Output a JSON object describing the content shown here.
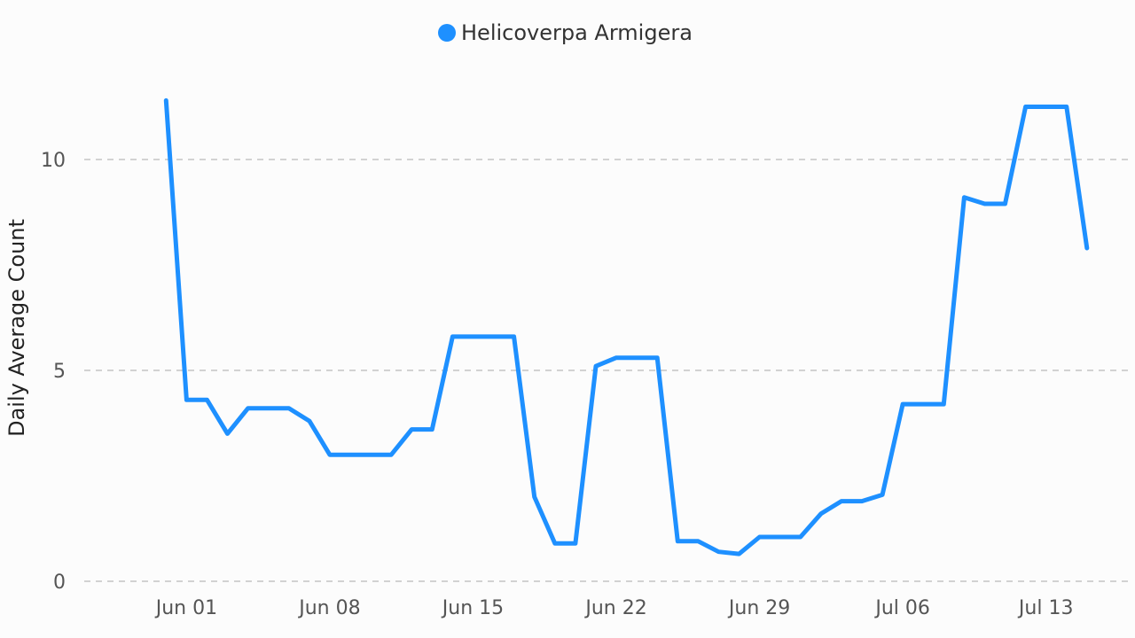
{
  "chart_data": {
    "type": "line",
    "ylabel": "Daily Average Count",
    "ylim": [
      0,
      12
    ],
    "yticks": [
      0,
      5,
      10
    ],
    "xticks": [
      "2023-06-01",
      "2023-06-08",
      "2023-06-15",
      "2023-06-22",
      "2023-06-29",
      "2023-07-06",
      "2023-07-13"
    ],
    "xtick_labels": [
      "Jun 01",
      "Jun 08",
      "Jun 15",
      "Jun 22",
      "Jun 29",
      "Jul 06",
      "Jul 13"
    ],
    "xlim": [
      "2023-05-27",
      "2023-07-17"
    ],
    "grid": "horizontal-dashed",
    "legend_position": "top-center",
    "x": [
      "2023-05-31",
      "2023-06-01",
      "2023-06-02",
      "2023-06-03",
      "2023-06-04",
      "2023-06-05",
      "2023-06-06",
      "2023-06-07",
      "2023-06-08",
      "2023-06-09",
      "2023-06-10",
      "2023-06-11",
      "2023-06-12",
      "2023-06-13",
      "2023-06-14",
      "2023-06-15",
      "2023-06-16",
      "2023-06-17",
      "2023-06-18",
      "2023-06-19",
      "2023-06-20",
      "2023-06-21",
      "2023-06-22",
      "2023-06-23",
      "2023-06-24",
      "2023-06-25",
      "2023-06-26",
      "2023-06-27",
      "2023-06-28",
      "2023-06-29",
      "2023-06-30",
      "2023-07-01",
      "2023-07-02",
      "2023-07-03",
      "2023-07-04",
      "2023-07-05",
      "2023-07-06",
      "2023-07-07",
      "2023-07-08",
      "2023-07-09",
      "2023-07-10",
      "2023-07-11",
      "2023-07-12",
      "2023-07-13",
      "2023-07-14",
      "2023-07-15"
    ],
    "series": [
      {
        "name": "Helicoverpa Armigera",
        "color": "#1E90FF",
        "values": [
          11.4,
          4.3,
          4.3,
          3.5,
          4.1,
          4.1,
          4.1,
          3.8,
          3.0,
          3.0,
          3.0,
          3.0,
          3.6,
          3.6,
          5.8,
          5.8,
          5.8,
          5.8,
          2.0,
          0.9,
          0.9,
          5.1,
          5.3,
          5.3,
          5.3,
          0.95,
          0.95,
          0.7,
          0.65,
          1.05,
          1.05,
          1.05,
          1.6,
          1.9,
          1.9,
          2.05,
          4.2,
          4.2,
          4.2,
          9.1,
          8.95,
          8.95,
          11.25,
          11.25,
          11.25,
          7.9
        ]
      }
    ]
  }
}
